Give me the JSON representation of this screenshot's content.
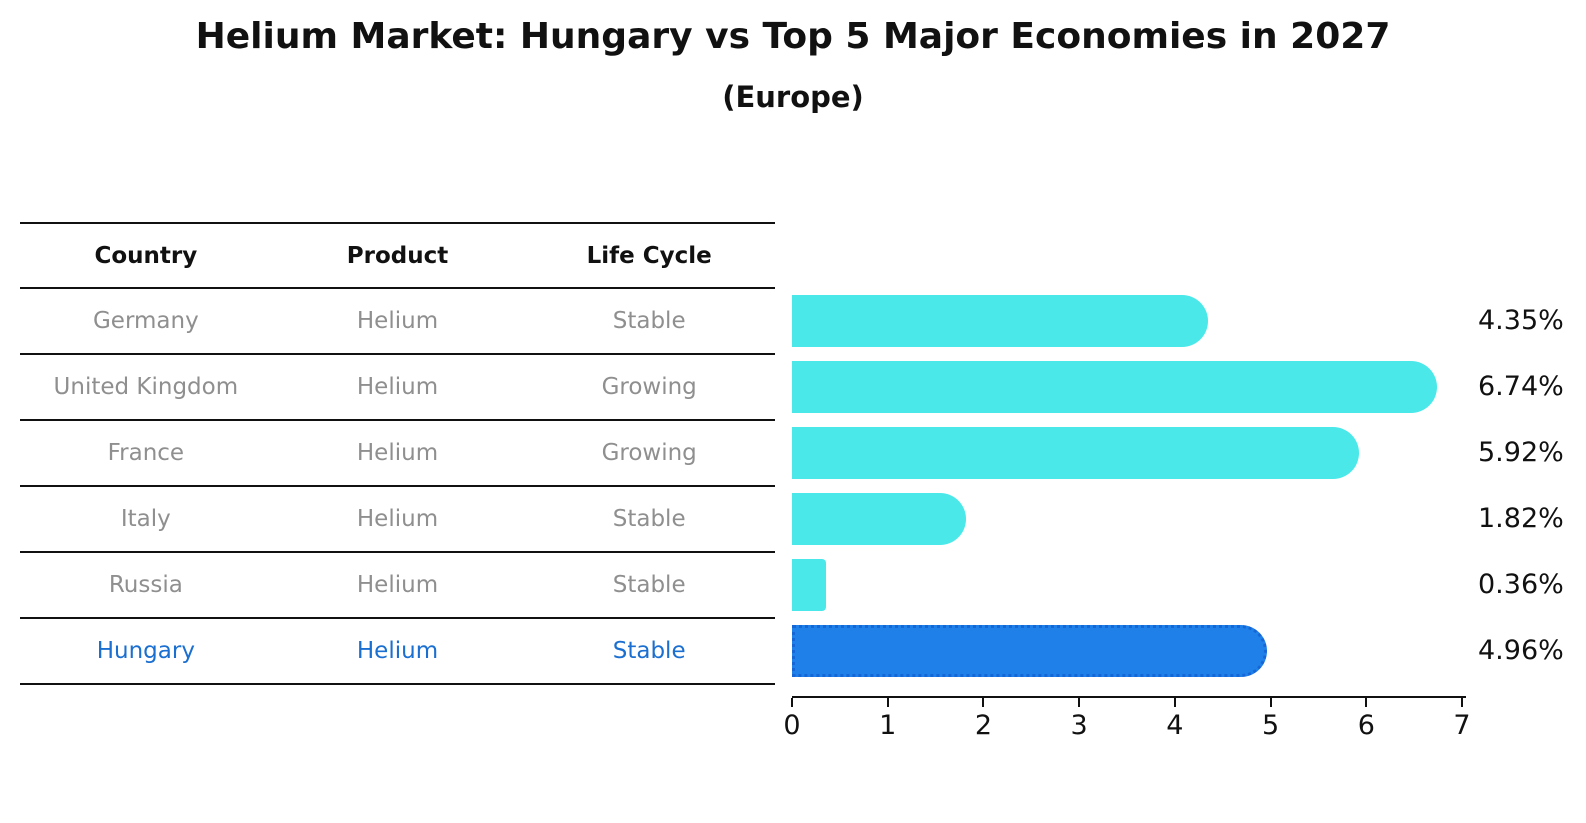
{
  "chart_data": {
    "type": "bar",
    "orientation": "horizontal",
    "title": "Helium Market: Hungary vs Top 5 Major Economies in 2027",
    "subtitle": "(Europe)",
    "categories": [
      "Germany",
      "United Kingdom",
      "France",
      "Italy",
      "Russia",
      "Hungary"
    ],
    "values": [
      4.35,
      6.74,
      5.92,
      1.82,
      0.36,
      4.96
    ],
    "value_labels": [
      "4.35%",
      "6.74%",
      "5.92%",
      "1.82%",
      "0.36%",
      "4.96%"
    ],
    "highlighted_category": "Hungary",
    "xlim": [
      0,
      7
    ],
    "x_ticks": [
      "0",
      "1",
      "2",
      "3",
      "4",
      "5",
      "6",
      "7"
    ],
    "grid": false,
    "legend": false,
    "unit": "%"
  },
  "table": {
    "headers": [
      "Country",
      "Product",
      "Life Cycle"
    ],
    "rows": [
      {
        "country": "Germany",
        "product": "Helium",
        "life_cycle": "Stable",
        "highlighted": false
      },
      {
        "country": "United Kingdom",
        "product": "Helium",
        "life_cycle": "Growing",
        "highlighted": false
      },
      {
        "country": "France",
        "product": "Helium",
        "life_cycle": "Growing",
        "highlighted": false
      },
      {
        "country": "Italy",
        "product": "Helium",
        "life_cycle": "Stable",
        "highlighted": false
      },
      {
        "country": "Russia",
        "product": "Helium",
        "life_cycle": "Stable",
        "highlighted": false
      },
      {
        "country": "Hungary",
        "product": "Helium",
        "life_cycle": "Stable",
        "highlighted": true
      }
    ]
  },
  "colors": {
    "bar_default": "#4ae8e8",
    "bar_highlight": "#1e80e8",
    "bar_highlight_border": "#1566d6",
    "table_text_gray": "#8f8f8f",
    "highlight_text_blue": "#1b6fd0",
    "heading_text": "#111111"
  }
}
